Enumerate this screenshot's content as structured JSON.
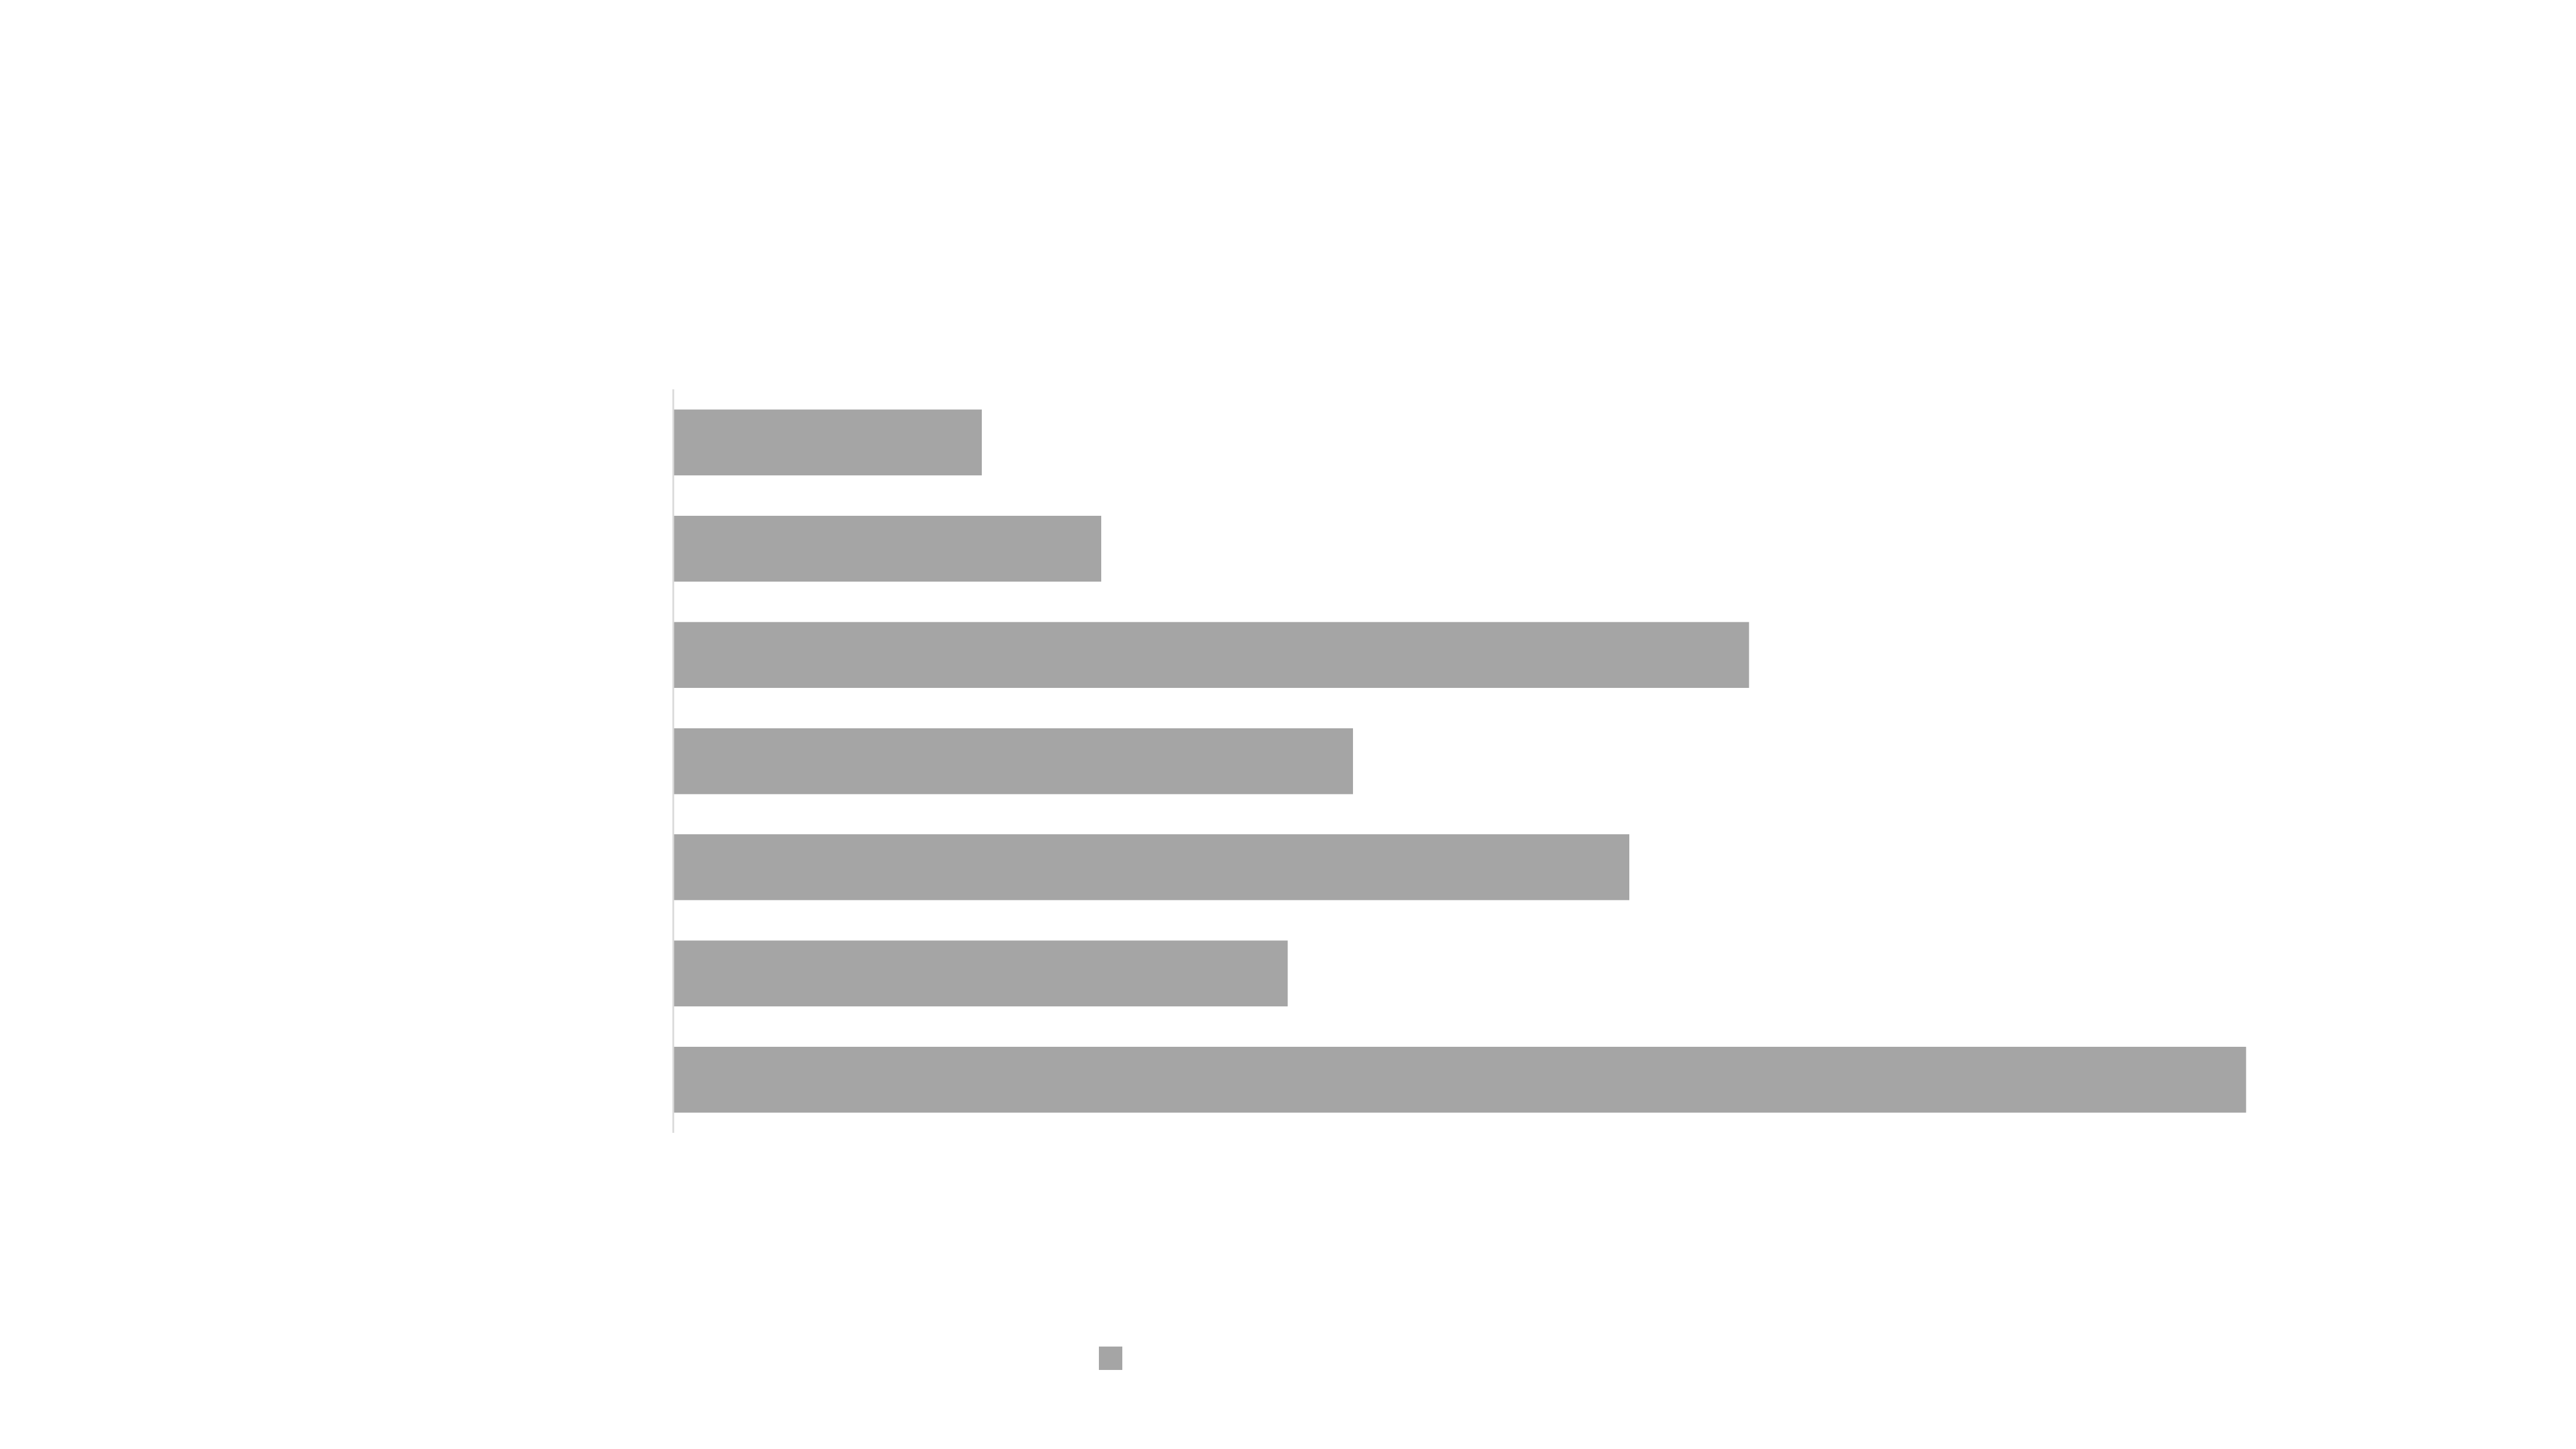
{
  "chart_data": {
    "type": "bar",
    "orientation": "horizontal",
    "categories": [
      "",
      "",
      "",
      "",
      "",
      "",
      ""
    ],
    "series": [
      {
        "values": [
          2.5,
          3.47,
          8.72,
          5.51,
          7.75,
          4.98,
          12.75
        ]
      }
    ],
    "xlim": [
      0,
      14
    ],
    "title": "",
    "xlabel": "",
    "ylabel": "",
    "grid": false,
    "legend_position": "bottom",
    "colors": {
      "bar": "#a5a5a5",
      "axis": "#d9d9d9",
      "background": "#ffffff"
    }
  }
}
